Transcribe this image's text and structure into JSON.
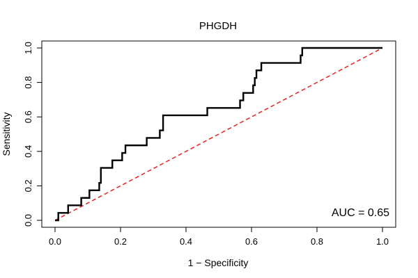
{
  "chart_data": {
    "type": "line",
    "title": "PHGDH",
    "xlabel": "1 − Specificity",
    "ylabel": "Sensitivity",
    "xlim": [
      0,
      1
    ],
    "ylim": [
      0,
      1
    ],
    "x_ticks": [
      "0.0",
      "0.2",
      "0.4",
      "0.6",
      "0.8",
      "1.0"
    ],
    "y_ticks": [
      "0.0",
      "0.2",
      "0.4",
      "0.6",
      "0.8",
      "1.0"
    ],
    "grid": false,
    "annotation": "AUC = 0.65",
    "series": [
      {
        "color": "#000000",
        "style": "solid",
        "points": [
          [
            0.0,
            0.0
          ],
          [
            0.01,
            0.0
          ],
          [
            0.01,
            0.043
          ],
          [
            0.04,
            0.043
          ],
          [
            0.04,
            0.087
          ],
          [
            0.08,
            0.087
          ],
          [
            0.08,
            0.13
          ],
          [
            0.105,
            0.13
          ],
          [
            0.105,
            0.174
          ],
          [
            0.135,
            0.174
          ],
          [
            0.135,
            0.217
          ],
          [
            0.14,
            0.217
          ],
          [
            0.14,
            0.304
          ],
          [
            0.175,
            0.304
          ],
          [
            0.175,
            0.348
          ],
          [
            0.205,
            0.348
          ],
          [
            0.205,
            0.391
          ],
          [
            0.215,
            0.391
          ],
          [
            0.215,
            0.435
          ],
          [
            0.28,
            0.435
          ],
          [
            0.28,
            0.478
          ],
          [
            0.32,
            0.478
          ],
          [
            0.32,
            0.522
          ],
          [
            0.33,
            0.522
          ],
          [
            0.33,
            0.609
          ],
          [
            0.465,
            0.609
          ],
          [
            0.465,
            0.652
          ],
          [
            0.565,
            0.652
          ],
          [
            0.565,
            0.696
          ],
          [
            0.575,
            0.696
          ],
          [
            0.575,
            0.739
          ],
          [
            0.605,
            0.739
          ],
          [
            0.605,
            0.783
          ],
          [
            0.61,
            0.783
          ],
          [
            0.61,
            0.826
          ],
          [
            0.615,
            0.826
          ],
          [
            0.615,
            0.87
          ],
          [
            0.63,
            0.87
          ],
          [
            0.63,
            0.913
          ],
          [
            0.75,
            0.913
          ],
          [
            0.75,
            0.957
          ],
          [
            0.755,
            0.957
          ],
          [
            0.755,
            1.0
          ],
          [
            1.0,
            1.0
          ]
        ]
      },
      {
        "color": "#e8231f",
        "style": "dashed",
        "points": [
          [
            0,
            0
          ],
          [
            1,
            1
          ]
        ]
      }
    ]
  }
}
